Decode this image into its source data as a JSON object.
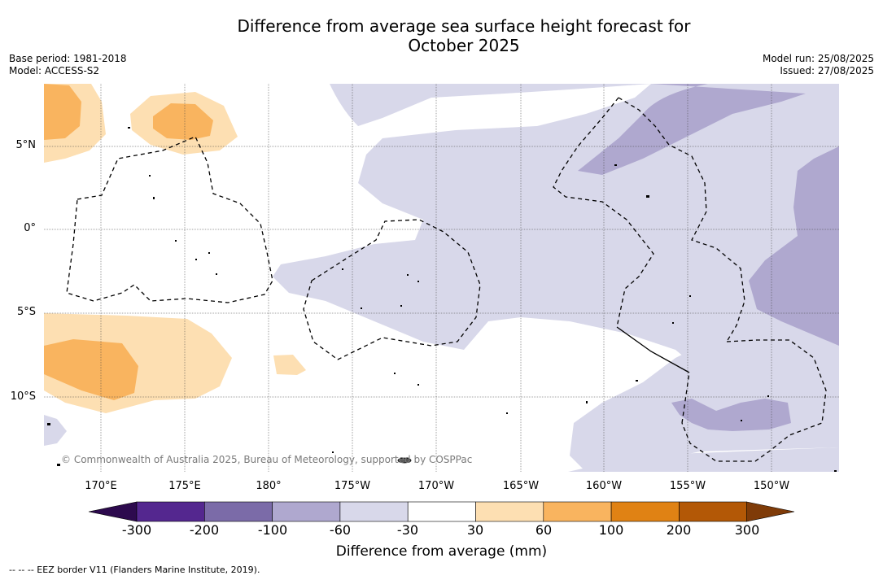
{
  "header": {
    "title_line1": "Difference from average sea surface height forecast for",
    "title_line2": "October 2025",
    "base_period": "Base period: 1981-2018",
    "model": "Model: ACCESS-S2",
    "model_run": "Model run: 25/08/2025",
    "issued": "Issued: 27/08/2025"
  },
  "map": {
    "latitude_labels": [
      "5°N",
      "0°",
      "5°S",
      "10°S"
    ],
    "longitude_labels": [
      "170°E",
      "175°E",
      "180°",
      "175°W",
      "170°W",
      "165°W",
      "160°W",
      "155°W",
      "150°W"
    ],
    "copyright": "© Commonwealth of Australia 2025, Bureau of Meteorology, supported by COSPPac"
  },
  "colorbar": {
    "title": "Difference from average (mm)",
    "ticks": [
      "-300",
      "-200",
      "-100",
      "-60",
      "-30",
      "30",
      "60",
      "100",
      "200",
      "300"
    ],
    "colors": {
      "below_min": "#2d0a4e",
      "c1": "#54278f",
      "c2": "#7b6ba8",
      "c3": "#afa8cf",
      "c4": "#d8d8ea",
      "neutral": "#ffffff",
      "w1": "#fddfb2",
      "w2": "#f9b45f",
      "w3": "#e08214",
      "w4": "#b35806",
      "above_max": "#7f3b08"
    }
  },
  "legend": {
    "eez_note": "--  --  -- EEZ border V11 (Flanders Marine Institute, 2019)."
  }
}
